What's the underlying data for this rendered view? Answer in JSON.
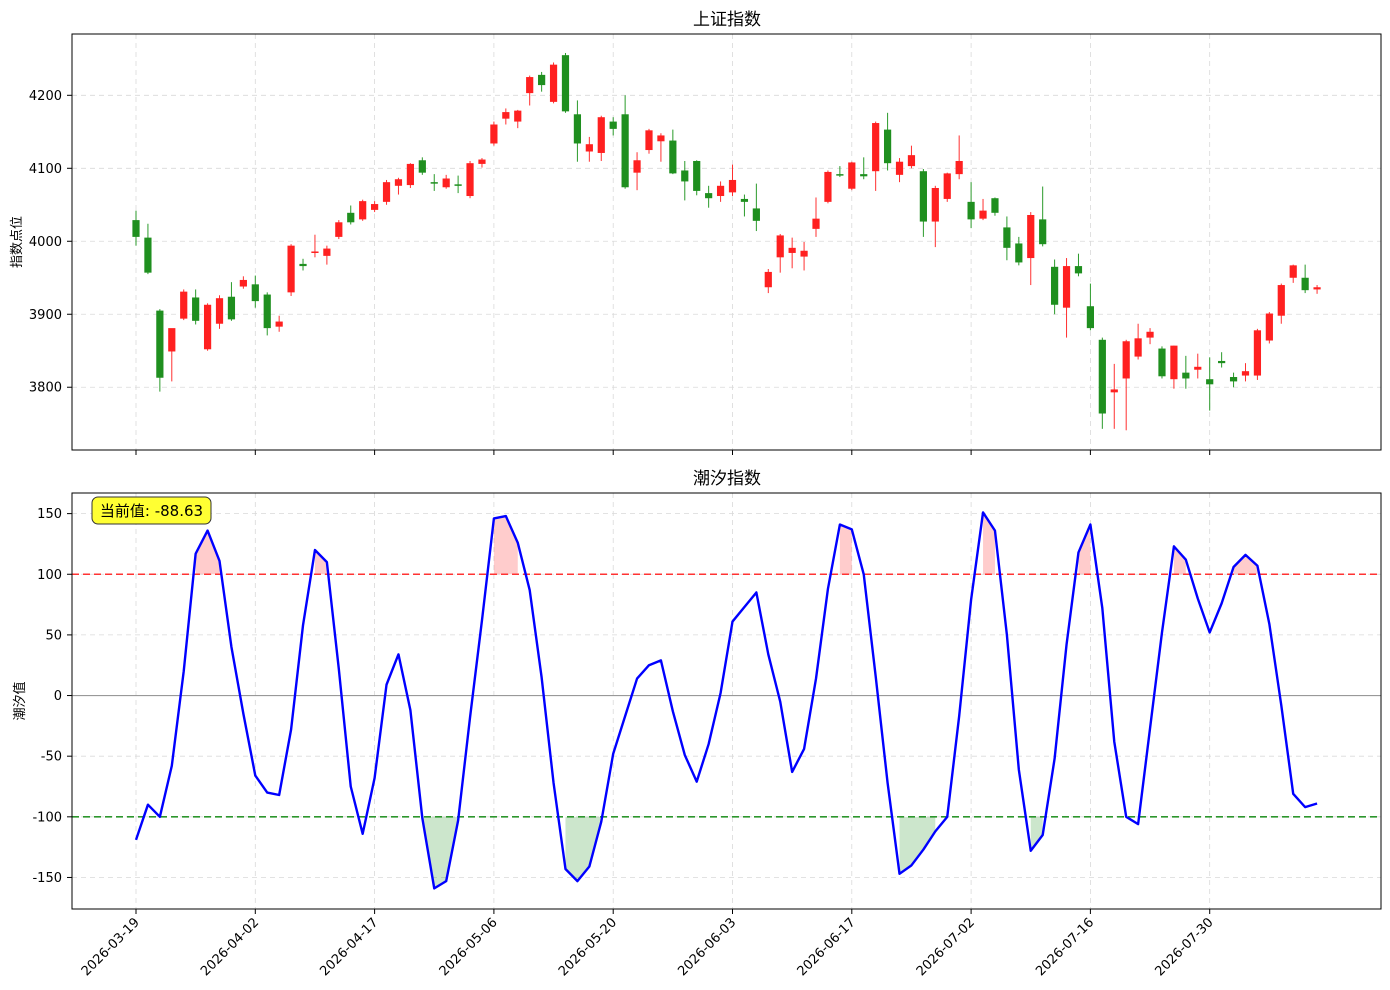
{
  "chart_data": [
    {
      "type": "candlestick",
      "title": "上证指数",
      "ylabel": "指数点位",
      "xlabel": "",
      "ylim": [
        3714,
        4284
      ],
      "yticks": [
        3800,
        3900,
        4000,
        4100,
        4200
      ],
      "grid": true,
      "colors": {
        "up": "#ff0000",
        "down": "#008000"
      },
      "candles": [
        [
          4029,
          4006,
          4042,
          3994
        ],
        [
          4005,
          3957,
          4024,
          3955
        ],
        [
          3905,
          3813,
          3907,
          3794
        ],
        [
          3849,
          3881,
          3880,
          3808
        ],
        [
          3894,
          3931,
          3934,
          3892
        ],
        [
          3923,
          3891,
          3934,
          3886
        ],
        [
          3852,
          3913,
          3915,
          3850
        ],
        [
          3887,
          3922,
          3926,
          3880
        ],
        [
          3924,
          3893,
          3944,
          3891
        ],
        [
          3938,
          3947,
          3952,
          3935
        ],
        [
          3941,
          3918,
          3953,
          3909
        ],
        [
          3927,
          3881,
          3930,
          3871
        ],
        [
          3883,
          3890,
          3898,
          3876
        ],
        [
          3930,
          3994,
          3996,
          3925
        ],
        [
          3969,
          3966,
          3976,
          3960
        ],
        [
          3985,
          3986,
          4009,
          3978
        ],
        [
          3980,
          3990,
          3994,
          3968
        ],
        [
          4006,
          4026,
          4029,
          4003
        ],
        [
          4039,
          4026,
          4049,
          4023
        ],
        [
          4030,
          4055,
          4057,
          4028
        ],
        [
          4043,
          4051,
          4055,
          4040
        ],
        [
          4054,
          4081,
          4084,
          4050
        ],
        [
          4076,
          4085,
          4087,
          4064
        ],
        [
          4077,
          4106,
          4107,
          4073
        ],
        [
          4111,
          4094,
          4115,
          4091
        ],
        [
          4081,
          4080,
          4092,
          4069
        ],
        [
          4074,
          4086,
          4091,
          4072
        ],
        [
          4078,
          4076,
          4090,
          4066
        ],
        [
          4062,
          4107,
          4110,
          4059
        ],
        [
          4106,
          4112,
          4114,
          4101
        ],
        [
          4134,
          4160,
          4164,
          4131
        ],
        [
          4168,
          4177,
          4182,
          4160
        ],
        [
          4164,
          4179,
          4180,
          4155
        ],
        [
          4203,
          4225,
          4227,
          4186
        ],
        [
          4228,
          4214,
          4232,
          4205
        ],
        [
          4191,
          4242,
          4245,
          4189
        ],
        [
          4255,
          4178,
          4258,
          4176
        ],
        [
          4174,
          4134,
          4193,
          4109
        ],
        [
          4123,
          4133,
          4143,
          4109
        ],
        [
          4121,
          4170,
          4172,
          4110
        ],
        [
          4164,
          4154,
          4170,
          4145
        ],
        [
          4174,
          4074,
          4200,
          4072
        ],
        [
          4094,
          4111,
          4122,
          4070
        ],
        [
          4125,
          4152,
          4154,
          4120
        ],
        [
          4137,
          4145,
          4148,
          4109
        ],
        [
          4138,
          4093,
          4153,
          4092
        ],
        [
          4097,
          4082,
          4110,
          4056
        ],
        [
          4110,
          4069,
          4111,
          4063
        ],
        [
          4066,
          4059,
          4076,
          4046
        ],
        [
          4062,
          4076,
          4082,
          4054
        ],
        [
          4067,
          4084,
          4105,
          4062
        ],
        [
          4058,
          4054,
          4064,
          4034
        ],
        [
          4045,
          4028,
          4079,
          4014
        ],
        [
          3937,
          3958,
          3962,
          3929
        ],
        [
          3978,
          4008,
          4010,
          3957
        ],
        [
          3984,
          3991,
          4005,
          3963
        ],
        [
          3979,
          3987,
          3999,
          3960
        ],
        [
          4017,
          4031,
          4060,
          4006
        ],
        [
          4054,
          4095,
          4097,
          4052
        ],
        [
          4092,
          4091,
          4103,
          4088
        ],
        [
          4072,
          4108,
          4109,
          4070
        ],
        [
          4092,
          4089,
          4115,
          4085
        ],
        [
          4096,
          4162,
          4164,
          4069
        ],
        [
          4153,
          4107,
          4176,
          4097
        ],
        [
          4091,
          4109,
          4114,
          4081
        ],
        [
          4103,
          4118,
          4131,
          4100
        ],
        [
          4096,
          4027,
          4099,
          4006
        ],
        [
          4027,
          4073,
          4076,
          3992
        ],
        [
          4058,
          4093,
          4094,
          4054
        ],
        [
          4092,
          4110,
          4145,
          4085
        ],
        [
          4054,
          4030,
          4081,
          4018
        ],
        [
          4031,
          4042,
          4058,
          4029
        ],
        [
          4059,
          4039,
          4060,
          4035
        ],
        [
          4019,
          3991,
          4034,
          3974
        ],
        [
          3997,
          3971,
          4006,
          3967
        ],
        [
          3977,
          4036,
          4040,
          3940
        ],
        [
          4030,
          3996,
          4075,
          3993
        ],
        [
          3965,
          3913,
          3975,
          3900
        ],
        [
          3909,
          3966,
          3977,
          3868
        ],
        [
          3966,
          3956,
          3983,
          3952
        ],
        [
          3911,
          3881,
          3942,
          3878
        ],
        [
          3865,
          3764,
          3868,
          3743
        ],
        [
          3793,
          3797,
          3832,
          3743
        ],
        [
          3812,
          3863,
          3865,
          3741
        ],
        [
          3842,
          3867,
          3887,
          3838
        ],
        [
          3868,
          3876,
          3881,
          3859
        ],
        [
          3853,
          3815,
          3856,
          3812
        ],
        [
          3811,
          3857,
          3857,
          3798
        ],
        [
          3820,
          3812,
          3843,
          3798
        ],
        [
          3824,
          3828,
          3846,
          3812
        ],
        [
          3811,
          3804,
          3841,
          3768
        ],
        [
          3836,
          3833,
          3848,
          3827
        ],
        [
          3814,
          3808,
          3820,
          3800
        ],
        [
          3816,
          3822,
          3833,
          3808
        ],
        [
          3816,
          3878,
          3880,
          3810
        ],
        [
          3864,
          3901,
          3903,
          3860
        ],
        [
          3898,
          3940,
          3942,
          3887
        ],
        [
          3950,
          3967,
          3968,
          3943
        ],
        [
          3950,
          3933,
          3968,
          3929
        ],
        [
          3934,
          3937,
          3940,
          3928
        ]
      ]
    },
    {
      "type": "line",
      "title": "潮汐指数",
      "ylabel": "潮汐值",
      "xlabel": "",
      "ylim": [
        -176,
        167
      ],
      "yticks": [
        -150,
        -100,
        -50,
        0,
        50,
        100,
        150
      ],
      "grid": true,
      "thresholds": {
        "upper": 100,
        "lower": -100,
        "zero": 0
      },
      "series": [
        {
          "values": [
            -119,
            -90,
            -100,
            -58,
            20,
            117,
            136,
            111,
            40,
            -15,
            -66,
            -80,
            -82,
            -28,
            58,
            120,
            110,
            22,
            -75,
            -114,
            -68,
            9,
            34,
            -12,
            -101,
            -159,
            -153,
            -103,
            -18,
            62,
            146,
            148,
            126,
            87,
            15,
            -72,
            -143,
            -153,
            -141,
            -104,
            -48,
            -17,
            14,
            25,
            29,
            -13,
            -49,
            -71,
            -40,
            2,
            61,
            73,
            85,
            34,
            -5,
            -63,
            -44,
            14,
            88,
            141,
            137,
            100,
            16,
            -72,
            -147,
            -140,
            -127,
            -112,
            -100,
            -17,
            79,
            151,
            136,
            50,
            -61,
            -128,
            -115,
            -52,
            42,
            118,
            141,
            72,
            -38,
            -100,
            -106,
            -27,
            52,
            123,
            112,
            80,
            52,
            76,
            106,
            116,
            107,
            59,
            -8,
            -81,
            -92,
            -89
          ]
        }
      ],
      "annotation": {
        "label": "当前值: -88.63",
        "color": "#ffff33"
      }
    }
  ],
  "x_axis": {
    "ticks": [
      {
        "label": "2026-03-19",
        "index": 0
      },
      {
        "label": "2026-04-02",
        "index": 10
      },
      {
        "label": "2026-04-17",
        "index": 20
      },
      {
        "label": "2026-05-06",
        "index": 30
      },
      {
        "label": "2026-05-20",
        "index": 40
      },
      {
        "label": "2026-06-03",
        "index": 50
      },
      {
        "label": "2026-06-17",
        "index": 60
      },
      {
        "label": "2026-07-02",
        "index": 70
      },
      {
        "label": "2026-07-16",
        "index": 80
      },
      {
        "label": "2026-07-30",
        "index": 90
      }
    ]
  }
}
